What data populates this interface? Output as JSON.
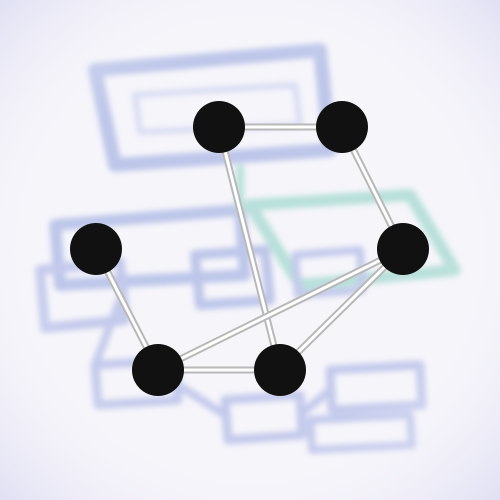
{
  "puzzle": {
    "nodes": [
      {
        "id": "n1"
      },
      {
        "id": "n2"
      },
      {
        "id": "n3"
      },
      {
        "id": "n4"
      },
      {
        "id": "n5"
      },
      {
        "id": "n6"
      }
    ],
    "edges": [
      {
        "from": "n1",
        "to": "n2"
      },
      {
        "from": "n1",
        "to": "n6"
      },
      {
        "from": "n2",
        "to": "n3"
      },
      {
        "from": "n3",
        "to": "n5"
      },
      {
        "from": "n3",
        "to": "n6"
      },
      {
        "from": "n4",
        "to": "n5"
      },
      {
        "from": "n5",
        "to": "n6"
      }
    ]
  },
  "colors": {
    "node_fill": "#111111",
    "edge_outer": "#b8b8b8",
    "edge_inner": "#ffffff",
    "background_pattern_blue": "#9aa6e0",
    "background_pattern_green": "#8fd0c4",
    "background": "#f4f3f8"
  }
}
